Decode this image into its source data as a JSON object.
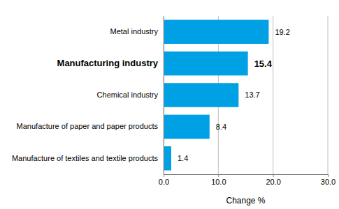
{
  "chart_data": {
    "type": "bar",
    "orientation": "horizontal",
    "categories": [
      "Metal industry",
      "Manufacturing industry",
      "Chemical industry",
      "Manufacture of paper and paper products",
      "Manufacture of textiles and textile products"
    ],
    "values": [
      19.2,
      15.4,
      13.7,
      8.4,
      1.4
    ],
    "color": "#00a0e4",
    "xlabel": "Change %",
    "xlim": [
      0,
      30
    ],
    "xticks": [
      {
        "value": 0,
        "label": "0.0"
      },
      {
        "value": 10,
        "label": "10.0"
      },
      {
        "value": 20,
        "label": "20.0"
      },
      {
        "value": 30,
        "label": "30.0"
      }
    ],
    "grid": true,
    "data_labels": true
  }
}
